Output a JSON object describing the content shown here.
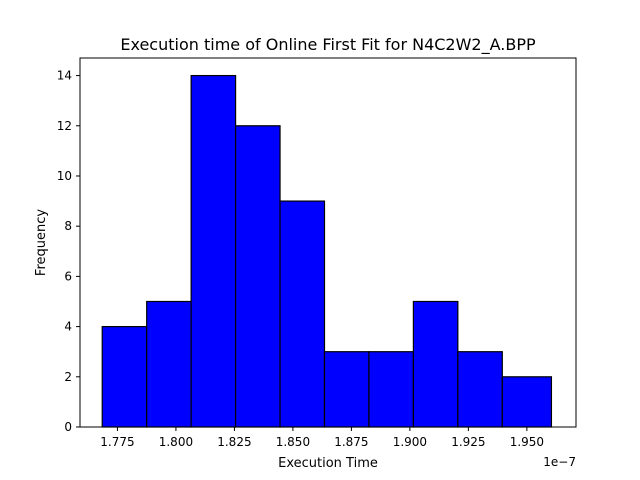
{
  "chart_data": {
    "type": "bar",
    "title": "Execution time of Online First Fit for N4C2W2_A.BPP",
    "xlabel": "Execution Time",
    "ylabel": "Frequency",
    "x_offset_text": "1e−7",
    "x_scale": 1e-07,
    "xlim": [
      1.759,
      1.971
    ],
    "ylim": [
      0,
      14.7
    ],
    "bins": [
      {
        "start": 1.7685,
        "end": 1.7875,
        "count": 4
      },
      {
        "start": 1.7875,
        "end": 1.8065,
        "count": 5
      },
      {
        "start": 1.8065,
        "end": 1.8255,
        "count": 14
      },
      {
        "start": 1.8255,
        "end": 1.8445,
        "count": 12
      },
      {
        "start": 1.8445,
        "end": 1.8635,
        "count": 9
      },
      {
        "start": 1.8635,
        "end": 1.8825,
        "count": 3
      },
      {
        "start": 1.8825,
        "end": 1.9015,
        "count": 3
      },
      {
        "start": 1.9015,
        "end": 1.9205,
        "count": 5
      },
      {
        "start": 1.9205,
        "end": 1.9395,
        "count": 3
      },
      {
        "start": 1.9395,
        "end": 1.9605,
        "count": 2
      }
    ],
    "x_ticks": [
      {
        "value": 1.775,
        "label": "1.775"
      },
      {
        "value": 1.8,
        "label": "1.800"
      },
      {
        "value": 1.825,
        "label": "1.825"
      },
      {
        "value": 1.85,
        "label": "1.850"
      },
      {
        "value": 1.875,
        "label": "1.875"
      },
      {
        "value": 1.9,
        "label": "1.900"
      },
      {
        "value": 1.925,
        "label": "1.925"
      },
      {
        "value": 1.95,
        "label": "1.950"
      }
    ],
    "y_ticks": [
      {
        "value": 0,
        "label": "0"
      },
      {
        "value": 2,
        "label": "2"
      },
      {
        "value": 4,
        "label": "4"
      },
      {
        "value": 6,
        "label": "6"
      },
      {
        "value": 8,
        "label": "8"
      },
      {
        "value": 10,
        "label": "10"
      },
      {
        "value": 12,
        "label": "12"
      },
      {
        "value": 14,
        "label": "14"
      }
    ],
    "bar_color": "#0000ff",
    "edge_color": "#000000",
    "grid": false,
    "legend": "none"
  }
}
